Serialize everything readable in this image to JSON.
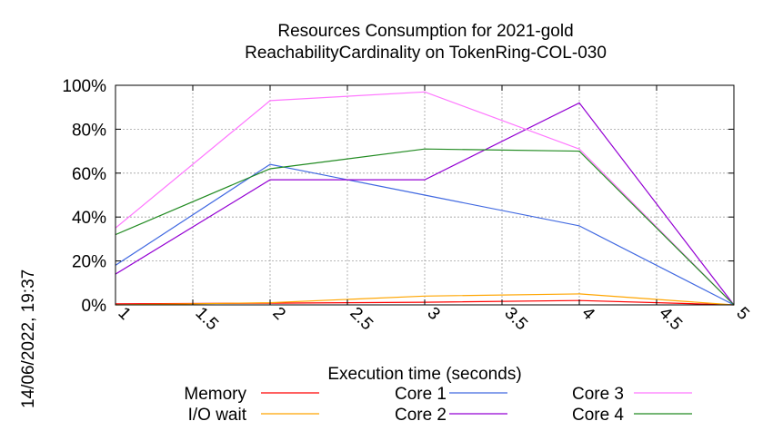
{
  "chart_data": {
    "type": "line",
    "title_line1": "Resources Consumption for 2021-gold",
    "title_line2": "ReachabilityCardinality on TokenRing-COL-030",
    "xlabel": "Execution time (seconds)",
    "ylabel": "",
    "side_label": "14/06/2022, 19:37",
    "xlim": [
      1,
      5
    ],
    "ylim": [
      0,
      100
    ],
    "x_ticks": [
      "1",
      "1.5",
      "2",
      "2.5",
      "3",
      "3.5",
      "4",
      "4.5",
      "5"
    ],
    "y_ticks": [
      "0%",
      "20%",
      "40%",
      "60%",
      "80%",
      "100%"
    ],
    "grid": true,
    "legend_position": "bottom",
    "series": [
      {
        "name": "Memory",
        "color": "#ff0000",
        "x": [
          1,
          2,
          3,
          4,
          5
        ],
        "values": [
          0.5,
          0.8,
          1.2,
          2,
          0
        ]
      },
      {
        "name": "I/O wait",
        "color": "#ffa500",
        "x": [
          1,
          2,
          3,
          4,
          5
        ],
        "values": [
          0,
          1,
          4,
          5,
          0
        ]
      },
      {
        "name": "Core 1",
        "color": "#4169e1",
        "x": [
          1,
          2,
          3,
          4,
          5
        ],
        "values": [
          18,
          64,
          50,
          36,
          0
        ]
      },
      {
        "name": "Core 2",
        "color": "#9400d3",
        "x": [
          1,
          2,
          3,
          4,
          5
        ],
        "values": [
          14,
          57,
          57,
          92,
          0
        ]
      },
      {
        "name": "Core 3",
        "color": "#ff77ff",
        "x": [
          1,
          2,
          3,
          4,
          5
        ],
        "values": [
          35,
          93,
          97,
          71,
          0
        ]
      },
      {
        "name": "Core 4",
        "color": "#228b22",
        "x": [
          1,
          2,
          3,
          4,
          5
        ],
        "values": [
          32,
          62,
          71,
          70,
          0
        ]
      }
    ]
  }
}
